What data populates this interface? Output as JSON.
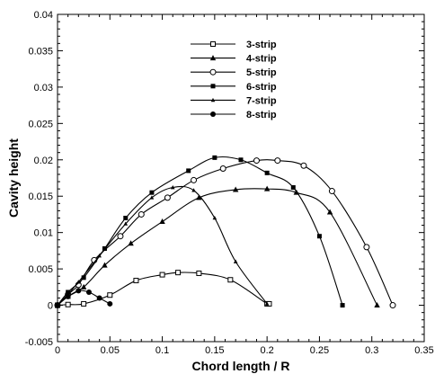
{
  "chart_data": {
    "type": "line",
    "title": "",
    "xlabel": "Chord length / R",
    "ylabel": "Cavity height",
    "xlim": [
      0,
      0.35
    ],
    "ylim": [
      -0.005,
      0.04
    ],
    "xticks": [
      "0",
      "0.05",
      "0.1",
      "0.15",
      "0.2",
      "0.25",
      "0.3",
      "0.35"
    ],
    "yticks": [
      "-0.005",
      "0",
      "0.005",
      "0.01",
      "0.015",
      "0.02",
      "0.025",
      "0.03",
      "0.035",
      "0.04"
    ],
    "grid": false,
    "legend_position": "top-center",
    "series": [
      {
        "name": "3-strip",
        "marker": "square-open",
        "x": [
          0,
          0.01,
          0.025,
          0.05,
          0.075,
          0.1,
          0.115,
          0.135,
          0.165,
          0.2,
          0.202
        ],
        "y": [
          0,
          0.0001,
          0.0002,
          0.0014,
          0.0034,
          0.0042,
          0.0045,
          0.0044,
          0.0035,
          0.0002,
          0.0002
        ]
      },
      {
        "name": "4-strip",
        "marker": "triangle-filled",
        "x": [
          0,
          0.01,
          0.025,
          0.045,
          0.07,
          0.1,
          0.135,
          0.17,
          0.2,
          0.228,
          0.26,
          0.305
        ],
        "y": [
          0,
          0.0012,
          0.0025,
          0.0055,
          0.0085,
          0.0115,
          0.0148,
          0.0159,
          0.016,
          0.0155,
          0.0128,
          0
        ]
      },
      {
        "name": "5-strip",
        "marker": "circle-open",
        "x": [
          0,
          0.01,
          0.02,
          0.035,
          0.06,
          0.08,
          0.105,
          0.13,
          0.158,
          0.19,
          0.21,
          0.235,
          0.262,
          0.295,
          0.32
        ],
        "y": [
          0,
          0.0015,
          0.0028,
          0.0062,
          0.0095,
          0.0125,
          0.0148,
          0.0172,
          0.0188,
          0.0199,
          0.0199,
          0.0192,
          0.0157,
          0.008,
          0
        ]
      },
      {
        "name": "6-strip",
        "marker": "square-filled",
        "x": [
          0,
          0.01,
          0.025,
          0.045,
          0.065,
          0.09,
          0.125,
          0.15,
          0.175,
          0.2,
          0.225,
          0.25,
          0.272
        ],
        "y": [
          0,
          0.0018,
          0.0038,
          0.0078,
          0.012,
          0.0155,
          0.0185,
          0.0203,
          0.02,
          0.0182,
          0.0162,
          0.0095,
          0
        ]
      },
      {
        "name": "7-strip",
        "marker": "triangle-small",
        "x": [
          0,
          0.01,
          0.02,
          0.04,
          0.065,
          0.09,
          0.11,
          0.13,
          0.15,
          0.17,
          0.2
        ],
        "y": [
          0,
          0.0015,
          0.0032,
          0.0068,
          0.0112,
          0.0148,
          0.0162,
          0.0158,
          0.012,
          0.006,
          0.0002
        ]
      },
      {
        "name": "8-strip",
        "marker": "circle-filled",
        "x": [
          0,
          0.01,
          0.02,
          0.03,
          0.04,
          0.05
        ],
        "y": [
          0,
          0.0012,
          0.002,
          0.0018,
          0.001,
          0.0002
        ]
      }
    ]
  }
}
